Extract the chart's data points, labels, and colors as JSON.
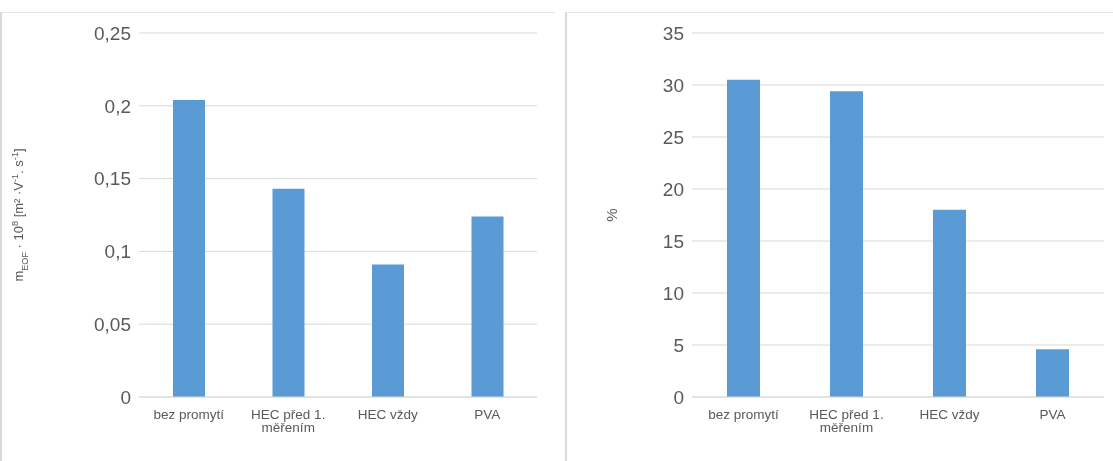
{
  "chart_data": [
    {
      "type": "bar",
      "ylabel": "m$_{EOF}$ · 10$^{8}$ [m² ·V$^{-1}$. s$^{-1}$]",
      "categories": [
        "bez promytí",
        "HEC před 1. měřením",
        "HEC vždy",
        "PVA"
      ],
      "values": [
        0.204,
        0.143,
        0.091,
        0.124
      ],
      "color": "#5b9bd5",
      "ylim": [
        0,
        0.25
      ],
      "yticks": [
        {
          "value": 0,
          "label": "0"
        },
        {
          "value": 0.05,
          "label": "0,05"
        },
        {
          "value": 0.1,
          "label": "0,1"
        },
        {
          "value": 0.15,
          "label": "0,15"
        },
        {
          "value": 0.2,
          "label": "0,2"
        },
        {
          "value": 0.25,
          "label": "0,25"
        }
      ],
      "grid": "y",
      "legend": false
    },
    {
      "type": "bar",
      "ylabel": "%",
      "categories": [
        "bez promytí",
        "HEC před 1. měřením",
        "HEC vždy",
        "PVA"
      ],
      "values": [
        30.5,
        29.4,
        18.0,
        4.6
      ],
      "color": "#5b9bd5",
      "ylim": [
        0,
        35
      ],
      "yticks": [
        0,
        5,
        10,
        15,
        20,
        25,
        30,
        35
      ],
      "grid": "y",
      "legend": false
    }
  ]
}
